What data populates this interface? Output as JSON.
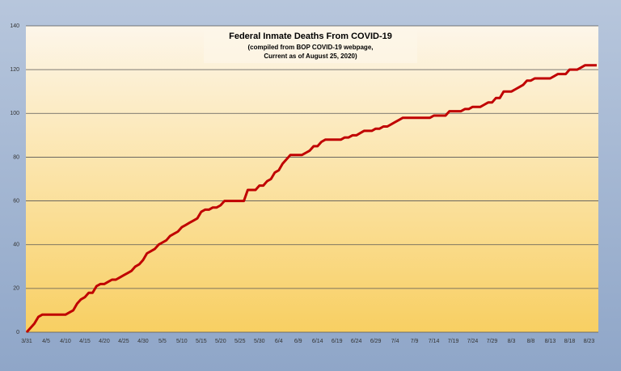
{
  "chart_data": {
    "type": "line",
    "title": "Federal Inmate Deaths From COVID-19",
    "subtitle": [
      "(compiled from BOP COVID-19 webpage,",
      "Current as of August 25, 2020)"
    ],
    "categories": [
      "3/31",
      null,
      null,
      null,
      null,
      "4/5",
      null,
      null,
      null,
      null,
      "4/10",
      null,
      null,
      null,
      null,
      "4/15",
      null,
      null,
      null,
      null,
      "4/20",
      null,
      null,
      null,
      null,
      "4/25",
      null,
      null,
      null,
      null,
      "4/30",
      null,
      null,
      null,
      null,
      "5/5",
      null,
      null,
      null,
      null,
      "5/10",
      null,
      null,
      null,
      null,
      "5/15",
      null,
      null,
      null,
      null,
      "5/20",
      null,
      null,
      null,
      null,
      "5/25",
      null,
      null,
      null,
      null,
      "5/30",
      null,
      null,
      null,
      null,
      "6/4",
      null,
      null,
      null,
      null,
      "6/9",
      null,
      null,
      null,
      null,
      "6/14",
      null,
      null,
      null,
      null,
      "6/19",
      null,
      null,
      null,
      null,
      "6/24",
      null,
      null,
      null,
      null,
      "6/29",
      null,
      null,
      null,
      null,
      "7/4",
      null,
      null,
      null,
      null,
      "7/9",
      null,
      null,
      null,
      null,
      "7/14",
      null,
      null,
      null,
      null,
      "7/19",
      null,
      null,
      null,
      null,
      "7/24",
      null,
      null,
      null,
      null,
      "7/29",
      null,
      null,
      null,
      null,
      "8/3",
      null,
      null,
      null,
      null,
      "8/8",
      null,
      null,
      null,
      null,
      "8/13",
      null,
      null,
      null,
      null,
      "8/18",
      null,
      null,
      null,
      null,
      "8/23",
      null,
      null
    ],
    "series": [
      {
        "name": "Deaths",
        "color": "#c00000",
        "values": [
          0,
          2,
          4,
          7,
          8,
          8,
          8,
          8,
          8,
          8,
          8,
          9,
          10,
          13,
          15,
          16,
          18,
          18,
          21,
          22,
          22,
          23,
          24,
          24,
          25,
          26,
          27,
          28,
          30,
          31,
          33,
          36,
          37,
          38,
          40,
          41,
          42,
          44,
          45,
          46,
          48,
          49,
          50,
          51,
          52,
          55,
          56,
          56,
          57,
          57,
          58,
          60,
          60,
          60,
          60,
          60,
          60,
          65,
          65,
          65,
          67,
          67,
          69,
          70,
          73,
          74,
          77,
          79,
          81,
          81,
          81,
          81,
          82,
          83,
          85,
          85,
          87,
          88,
          88,
          88,
          88,
          88,
          89,
          89,
          90,
          90,
          91,
          92,
          92,
          92,
          93,
          93,
          94,
          94,
          95,
          96,
          97,
          98,
          98,
          98,
          98,
          98,
          98,
          98,
          98,
          99,
          99,
          99,
          99,
          101,
          101,
          101,
          101,
          102,
          102,
          103,
          103,
          103,
          104,
          105,
          105,
          107,
          107,
          110,
          110,
          110,
          111,
          112,
          113,
          115,
          115,
          116,
          116,
          116,
          116,
          116,
          117,
          118,
          118,
          118,
          120,
          120,
          120,
          121,
          122,
          122,
          122,
          122
        ]
      }
    ],
    "ylim": [
      0,
      140
    ],
    "yticks": [
      0,
      20,
      40,
      60,
      80,
      100,
      120,
      140
    ],
    "grid": true
  }
}
